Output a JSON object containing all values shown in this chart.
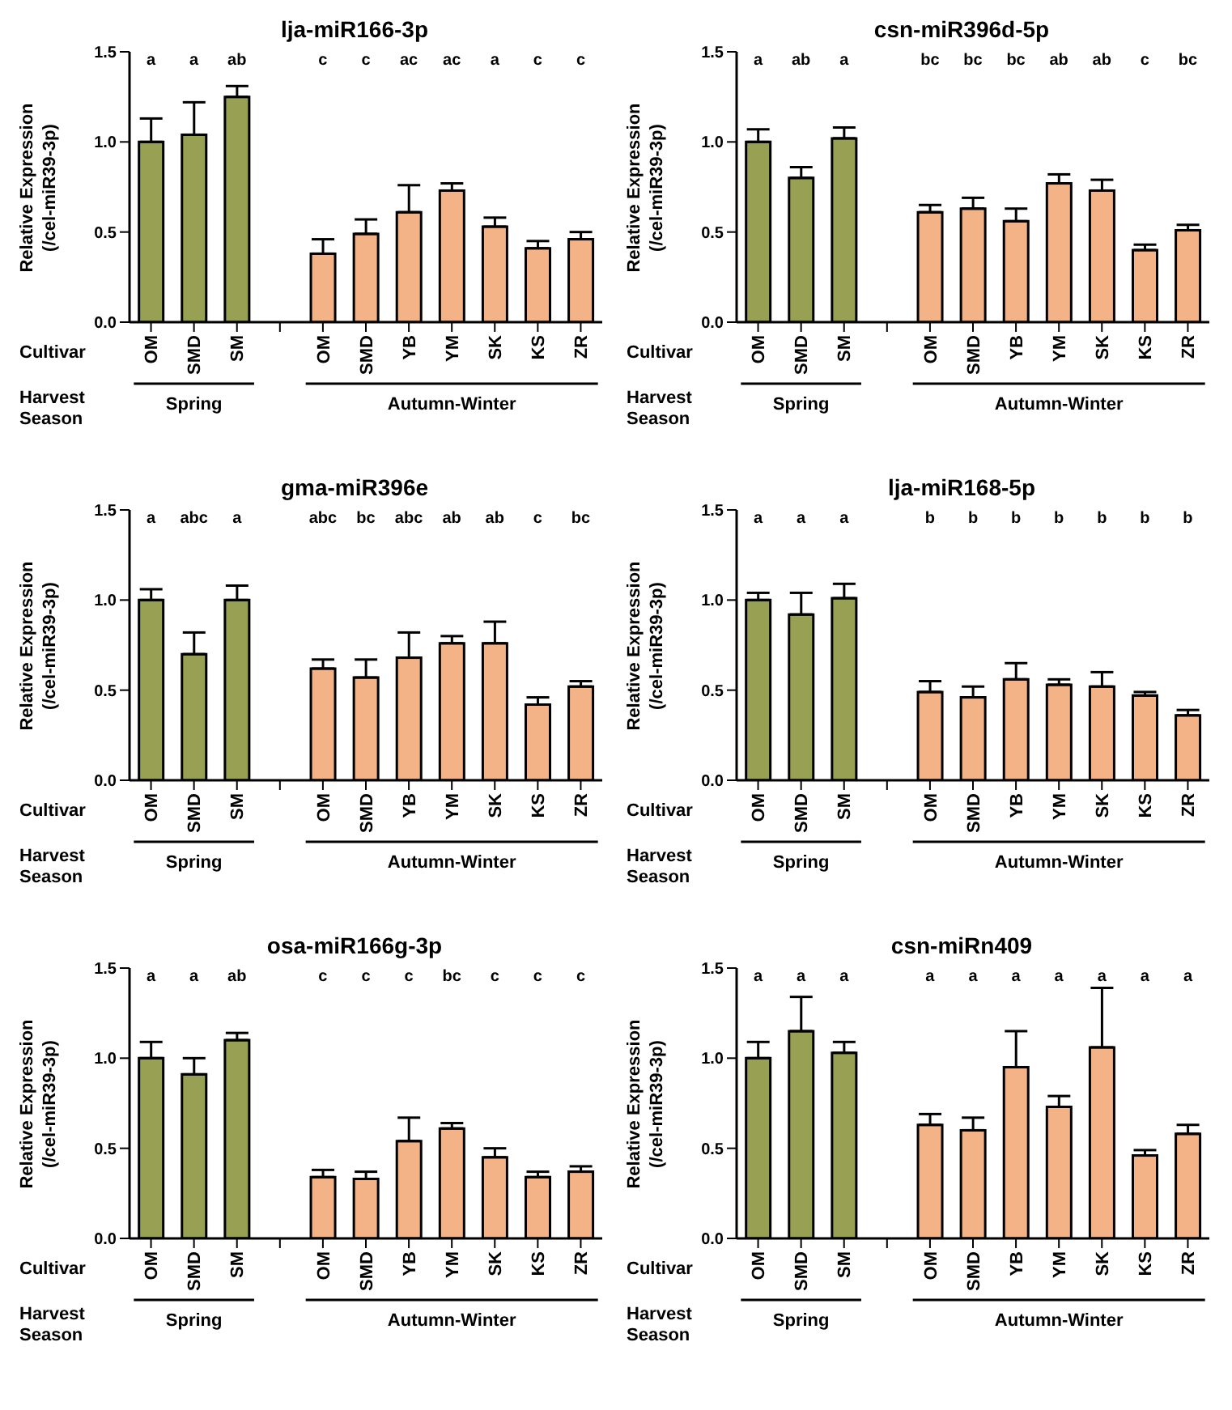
{
  "chart_data": [
    {
      "type": "bar",
      "title": "lja-miR166-3p",
      "ylabel": "Relative Expression (/cel-miR39-3p)",
      "xlabel": "Cultivar",
      "categories": [
        "OM",
        "SMD",
        "SM",
        null,
        "OM",
        "SMD",
        "YB",
        "YM",
        "SK",
        "KS",
        "ZR"
      ],
      "values": [
        1.0,
        1.04,
        1.25,
        null,
        0.38,
        0.49,
        0.61,
        0.73,
        0.53,
        0.41,
        0.46
      ],
      "errors": [
        0.13,
        0.18,
        0.06,
        null,
        0.08,
        0.08,
        0.15,
        0.04,
        0.05,
        0.04,
        0.04
      ],
      "colors": [
        "#98a153",
        "#98a153",
        "#98a153",
        null,
        "#f4b386",
        "#f4b386",
        "#f4b386",
        "#f4b386",
        "#f4b386",
        "#f4b386",
        "#f4b386"
      ],
      "ylim": [
        0,
        1.5
      ],
      "yticks": [
        {
          "value": 0,
          "label": "0.0"
        },
        {
          "value": 0.5,
          "label": "0.5"
        },
        {
          "value": 1,
          "label": "1.0"
        },
        {
          "value": 1.5,
          "label": "1.5"
        }
      ],
      "annotations": [
        "a",
        "a",
        "ab",
        "c",
        "c",
        "ac",
        "ac",
        "a",
        "c",
        "c",
        "Harvest Season",
        "Spring",
        "Autumn-Winter"
      ]
    },
    {
      "type": "bar",
      "title": "csn-miR396d-5p",
      "ylabel": "Relative Expression (/cel-miR39-3p)",
      "xlabel": "Cultivar",
      "categories": [
        "OM",
        "SMD",
        "SM",
        null,
        "OM",
        "SMD",
        "YB",
        "YM",
        "SK",
        "KS",
        "ZR"
      ],
      "values": [
        1.0,
        0.8,
        1.02,
        null,
        0.61,
        0.63,
        0.56,
        0.77,
        0.73,
        0.4,
        0.51
      ],
      "errors": [
        0.07,
        0.06,
        0.06,
        null,
        0.04,
        0.06,
        0.07,
        0.05,
        0.06,
        0.03,
        0.03
      ],
      "colors": [
        "#98a153",
        "#98a153",
        "#98a153",
        null,
        "#f4b386",
        "#f4b386",
        "#f4b386",
        "#f4b386",
        "#f4b386",
        "#f4b386",
        "#f4b386"
      ],
      "ylim": [
        0,
        1.5
      ],
      "yticks": [
        {
          "value": 0,
          "label": "0.0"
        },
        {
          "value": 0.5,
          "label": "0.5"
        },
        {
          "value": 1,
          "label": "1.0"
        },
        {
          "value": 1.5,
          "label": "1.5"
        }
      ],
      "annotations": [
        "a",
        "ab",
        "a",
        "bc",
        "bc",
        "bc",
        "ab",
        "ab",
        "c",
        "bc",
        "Harvest Season",
        "Spring",
        "Autumn-Winter"
      ]
    },
    {
      "type": "bar",
      "title": "gma-miR396e",
      "ylabel": "Relative Expression (/cel-miR39-3p)",
      "xlabel": "Cultivar",
      "categories": [
        "OM",
        "SMD",
        "SM",
        null,
        "OM",
        "SMD",
        "YB",
        "YM",
        "SK",
        "KS",
        "ZR"
      ],
      "values": [
        1.0,
        0.7,
        1.0,
        null,
        0.62,
        0.57,
        0.68,
        0.76,
        0.76,
        0.42,
        0.52
      ],
      "errors": [
        0.06,
        0.12,
        0.08,
        null,
        0.05,
        0.1,
        0.14,
        0.04,
        0.12,
        0.04,
        0.03
      ],
      "colors": [
        "#98a153",
        "#98a153",
        "#98a153",
        null,
        "#f4b386",
        "#f4b386",
        "#f4b386",
        "#f4b386",
        "#f4b386",
        "#f4b386",
        "#f4b386"
      ],
      "ylim": [
        0,
        1.5
      ],
      "yticks": [
        {
          "value": 0,
          "label": "0.0"
        },
        {
          "value": 0.5,
          "label": "0.5"
        },
        {
          "value": 1,
          "label": "1.0"
        },
        {
          "value": 1.5,
          "label": "1.5"
        }
      ],
      "annotations": [
        "a",
        "abc",
        "a",
        "abc",
        "bc",
        "abc",
        "ab",
        "ab",
        "c",
        "bc",
        "Harvest Season",
        "Spring",
        "Autumn-Winter"
      ]
    },
    {
      "type": "bar",
      "title": "lja-miR168-5p",
      "ylabel": "Relative Expression (/cel-miR39-3p)",
      "xlabel": "Cultivar",
      "categories": [
        "OM",
        "SMD",
        "SM",
        null,
        "OM",
        "SMD",
        "YB",
        "YM",
        "SK",
        "KS",
        "ZR"
      ],
      "values": [
        1.0,
        0.92,
        1.01,
        null,
        0.49,
        0.46,
        0.56,
        0.53,
        0.52,
        0.47,
        0.36
      ],
      "errors": [
        0.04,
        0.12,
        0.08,
        null,
        0.06,
        0.06,
        0.09,
        0.03,
        0.08,
        0.02,
        0.03
      ],
      "colors": [
        "#98a153",
        "#98a153",
        "#98a153",
        null,
        "#f4b386",
        "#f4b386",
        "#f4b386",
        "#f4b386",
        "#f4b386",
        "#f4b386",
        "#f4b386"
      ],
      "ylim": [
        0,
        1.5
      ],
      "yticks": [
        {
          "value": 0,
          "label": "0.0"
        },
        {
          "value": 0.5,
          "label": "0.5"
        },
        {
          "value": 1,
          "label": "1.0"
        },
        {
          "value": 1.5,
          "label": "1.5"
        }
      ],
      "annotations": [
        "a",
        "a",
        "a",
        "b",
        "b",
        "b",
        "b",
        "b",
        "b",
        "b",
        "Harvest Season",
        "Spring",
        "Autumn-Winter"
      ]
    },
    {
      "type": "bar",
      "title": "osa-miR166g-3p",
      "ylabel": "Relative Expression (/cel-miR39-3p)",
      "xlabel": "Cultivar",
      "categories": [
        "OM",
        "SMD",
        "SM",
        null,
        "OM",
        "SMD",
        "YB",
        "YM",
        "SK",
        "KS",
        "ZR"
      ],
      "values": [
        1.0,
        0.91,
        1.1,
        null,
        0.34,
        0.33,
        0.54,
        0.61,
        0.45,
        0.34,
        0.37
      ],
      "errors": [
        0.09,
        0.09,
        0.04,
        null,
        0.04,
        0.04,
        0.13,
        0.03,
        0.05,
        0.03,
        0.03
      ],
      "colors": [
        "#98a153",
        "#98a153",
        "#98a153",
        null,
        "#f4b386",
        "#f4b386",
        "#f4b386",
        "#f4b386",
        "#f4b386",
        "#f4b386",
        "#f4b386"
      ],
      "ylim": [
        0,
        1.5
      ],
      "yticks": [
        {
          "value": 0,
          "label": "0.0"
        },
        {
          "value": 0.5,
          "label": "0.5"
        },
        {
          "value": 1,
          "label": "1.0"
        },
        {
          "value": 1.5,
          "label": "1.5"
        }
      ],
      "annotations": [
        "a",
        "a",
        "ab",
        "c",
        "c",
        "c",
        "bc",
        "c",
        "c",
        "c",
        "Harvest Season",
        "Spring",
        "Autumn-Winter"
      ]
    },
    {
      "type": "bar",
      "title": "csn-miRn409",
      "ylabel": "Relative Expression (/cel-miR39-3p)",
      "xlabel": "Cultivar",
      "categories": [
        "OM",
        "SMD",
        "SM",
        null,
        "OM",
        "SMD",
        "YB",
        "YM",
        "SK",
        "KS",
        "ZR"
      ],
      "values": [
        1.0,
        1.15,
        1.03,
        null,
        0.63,
        0.6,
        0.95,
        0.73,
        1.06,
        0.46,
        0.58
      ],
      "errors": [
        0.09,
        0.19,
        0.06,
        null,
        0.06,
        0.07,
        0.2,
        0.06,
        0.33,
        0.03,
        0.05
      ],
      "colors": [
        "#98a153",
        "#98a153",
        "#98a153",
        null,
        "#f4b386",
        "#f4b386",
        "#f4b386",
        "#f4b386",
        "#f4b386",
        "#f4b386",
        "#f4b386"
      ],
      "ylim": [
        0,
        1.5
      ],
      "yticks": [
        {
          "value": 0,
          "label": "0.0"
        },
        {
          "value": 0.5,
          "label": "0.5"
        },
        {
          "value": 1,
          "label": "1.0"
        },
        {
          "value": 1.5,
          "label": "1.5"
        }
      ],
      "annotations": [
        "a",
        "a",
        "a",
        "a",
        "a",
        "a",
        "a",
        "a",
        "a",
        "a",
        "Harvest Season",
        "Spring",
        "Autumn-Winter"
      ]
    }
  ]
}
